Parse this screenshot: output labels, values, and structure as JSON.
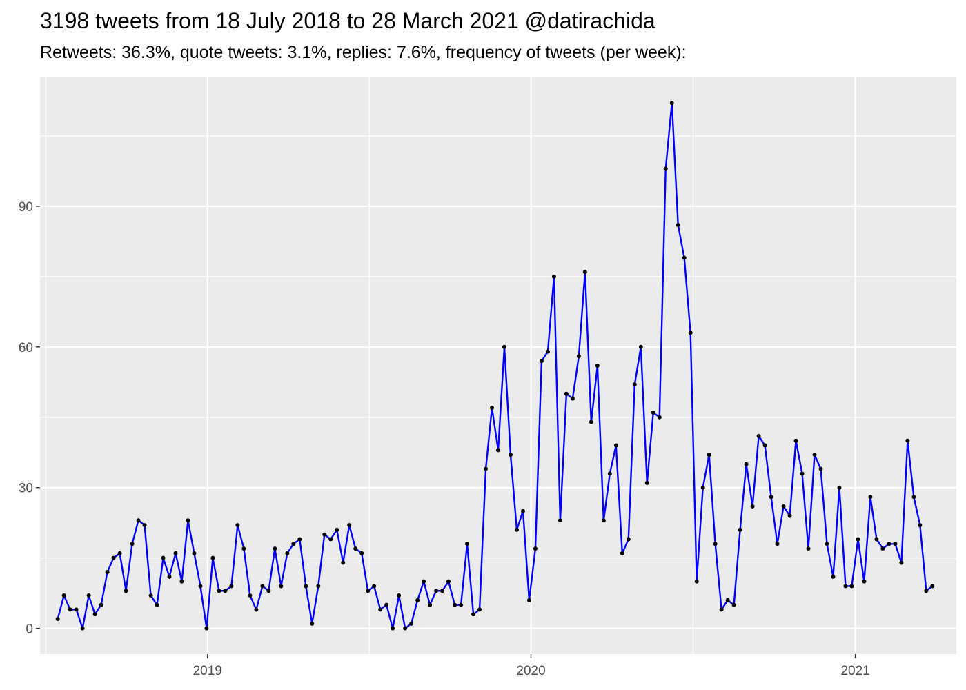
{
  "chart_data": {
    "type": "line",
    "title": "3198 tweets from 18 July 2018 to 28 March 2021 @datirachida",
    "subtitle": "Retweets: 36.3%, quote tweets: 3.1%, replies: 7.6%, frequency of tweets (per week):",
    "xlabel": "",
    "ylabel": "",
    "x_start": "2018-07-16",
    "x_interval_days": 7,
    "xlim": [
      "2018-06-26",
      "2021-04-25"
    ],
    "ylim": [
      -5.5,
      117.5
    ],
    "y_ticks": [
      0,
      30,
      60,
      90
    ],
    "y_tick_labels": [
      "0",
      "30",
      "60",
      "90"
    ],
    "x_ticks": [
      {
        "date": "2019-01-01",
        "label": "2019"
      },
      {
        "date": "2020-01-01",
        "label": "2020"
      },
      {
        "date": "2021-01-01",
        "label": "2021"
      }
    ],
    "grid": true,
    "legend": "none",
    "line_color": "#0000ff",
    "point_color": "#000000",
    "background_color": "#ebebeb",
    "series": [
      {
        "values": [
          2,
          7,
          4,
          4,
          0,
          7,
          3,
          5,
          12,
          15,
          16,
          8,
          18,
          23,
          22,
          7,
          5,
          15,
          11,
          16,
          10,
          23,
          16,
          9,
          0,
          15,
          8,
          8,
          9,
          22,
          17,
          7,
          4,
          9,
          8,
          17,
          9,
          16,
          18,
          19,
          9,
          1,
          9,
          20,
          19,
          21,
          14,
          22,
          17,
          16,
          8,
          9,
          4,
          5,
          0,
          7,
          0,
          1,
          6,
          10,
          5,
          8,
          8,
          10,
          5,
          5,
          18,
          3,
          4,
          34,
          47,
          38,
          60,
          37,
          21,
          25,
          6,
          17,
          57,
          59,
          75,
          23,
          50,
          49,
          58,
          76,
          44,
          56,
          23,
          33,
          39,
          16,
          19,
          52,
          60,
          31,
          46,
          45,
          98,
          112,
          86,
          79,
          63,
          10,
          30,
          37,
          18,
          4,
          6,
          5,
          21,
          35,
          26,
          41,
          39,
          28,
          18,
          26,
          24,
          40,
          33,
          17,
          37,
          34,
          18,
          11,
          30,
          9,
          9,
          19,
          10,
          28,
          19,
          17,
          18,
          18,
          14,
          40,
          28,
          22,
          8,
          9
        ]
      }
    ]
  }
}
